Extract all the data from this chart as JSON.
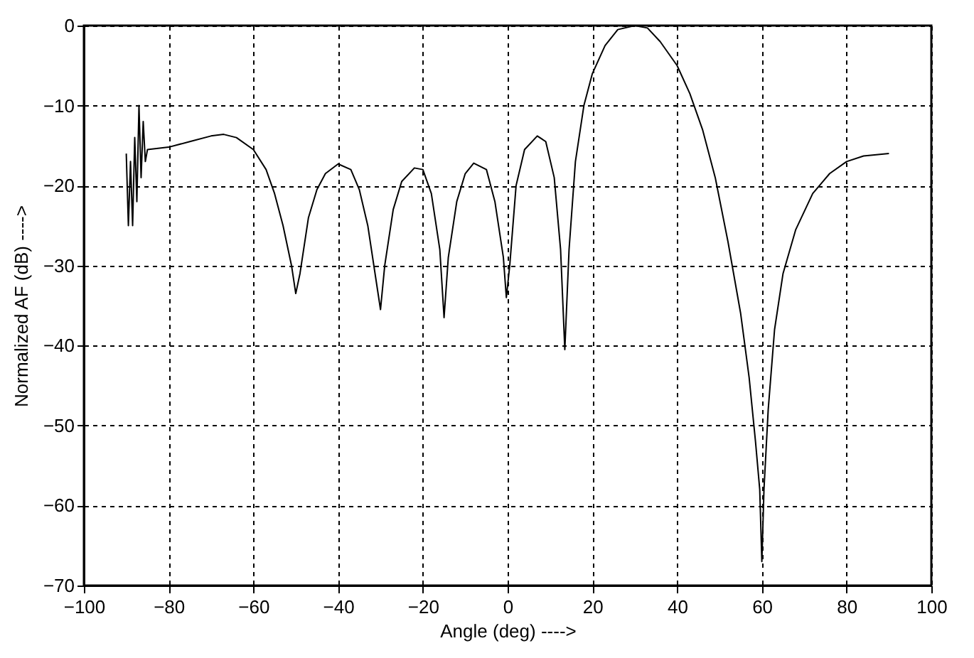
{
  "chart_data": {
    "type": "line",
    "xlabel": "Angle (deg) ---->",
    "ylabel": "Normalized AF (dB) ---->",
    "xlim": [
      -100,
      100
    ],
    "ylim": [
      -70,
      0
    ],
    "xticks": [
      -100,
      -80,
      -60,
      -40,
      -20,
      0,
      20,
      40,
      60,
      80,
      100
    ],
    "yticks": [
      -70,
      -60,
      -50,
      -40,
      -30,
      -20,
      -10,
      0
    ],
    "grid": true,
    "marker": "none",
    "line_style": "solid",
    "series": [
      {
        "color": "#000000",
        "x": [
          -90,
          -89.5,
          -89,
          -88.5,
          -88,
          -87.5,
          -87,
          -86.5,
          -86,
          -85.5,
          -85,
          -80,
          -75,
          -70,
          -67,
          -64,
          -60,
          -57,
          -55,
          -53,
          -51,
          -50,
          -49,
          -47,
          -45,
          -43,
          -40,
          -37,
          -35,
          -33,
          -31,
          -30,
          -29,
          -27,
          -25,
          -22,
          -20,
          -18,
          -16,
          -15,
          -14,
          -12,
          -10,
          -8,
          -5,
          -3,
          -1,
          -0.3,
          0.5,
          2,
          4,
          7,
          9,
          11,
          12.5,
          13.5,
          14.5,
          16,
          18,
          20,
          23,
          26,
          30,
          33,
          36,
          40,
          43,
          46,
          49,
          52,
          55,
          57,
          58.5,
          59.5,
          60,
          60.5,
          61.5,
          63,
          65,
          68,
          72,
          76,
          80,
          84,
          90
        ],
        "values": [
          -16,
          -25,
          -17,
          -25,
          -14,
          -22,
          -10,
          -19,
          -12,
          -17,
          -15.5,
          -15.2,
          -14.5,
          -13.8,
          -13.6,
          -14,
          -15.5,
          -18,
          -21,
          -25,
          -30,
          -33.5,
          -31,
          -24,
          -20.5,
          -18.5,
          -17.3,
          -18,
          -20.5,
          -25,
          -32,
          -35.5,
          -30,
          -23,
          -19.5,
          -17.8,
          -18,
          -21,
          -28,
          -36.5,
          -29,
          -22,
          -18.5,
          -17.2,
          -18,
          -22,
          -29,
          -34,
          -30,
          -20,
          -15.5,
          -13.8,
          -14.5,
          -19,
          -28,
          -40.5,
          -28,
          -17,
          -10,
          -6,
          -2.5,
          -0.5,
          0,
          -0.3,
          -2,
          -5,
          -8.5,
          -13,
          -19,
          -27,
          -36,
          -44,
          -52,
          -58,
          -67,
          -58,
          -48,
          -38,
          -31,
          -25.5,
          -21,
          -18.5,
          -17,
          -16.3,
          -16
        ]
      }
    ]
  }
}
